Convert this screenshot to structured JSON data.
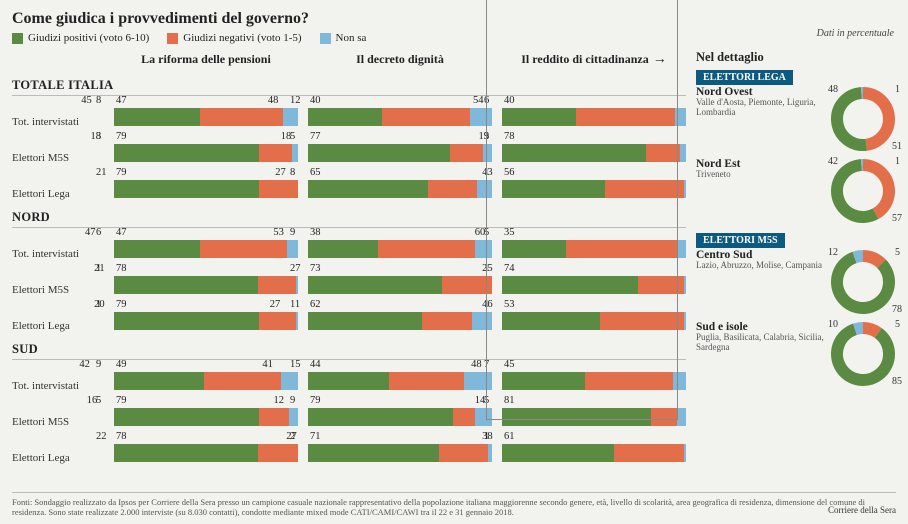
{
  "colors": {
    "positive": "#5b8a42",
    "negative": "#e36f4a",
    "dontknow": "#7fb8d9",
    "pill": "#0c5a80",
    "bg": "#f2f2ef"
  },
  "title": "Come giudica i provvedimenti del governo?",
  "dati_label": "Dati in percentuale",
  "legend": [
    {
      "label": "Giudizi positivi (voto 6-10)",
      "colorKey": "positive"
    },
    {
      "label": "Giudizi negativi (voto 1-5)",
      "colorKey": "negative"
    },
    {
      "label": "Non sa",
      "colorKey": "dontknow"
    }
  ],
  "columns": [
    "La riforma delle pensioni",
    "Il decreto dignità",
    "Il reddito di cittadinanza"
  ],
  "highlight_col_arrow": "→",
  "groups": [
    {
      "name": "TOTALE ITALIA",
      "rows": [
        {
          "label": "Tot. intervistati",
          "cells": [
            [
              47,
              45,
              8
            ],
            [
              40,
              48,
              12
            ],
            [
              40,
              54,
              6
            ]
          ]
        },
        {
          "label": "Elettori M5S",
          "cells": [
            [
              79,
              18,
              3
            ],
            [
              77,
              18,
              5
            ],
            [
              78,
              19,
              3
            ]
          ]
        },
        {
          "label": "Elettori Lega",
          "cells": [
            [
              79,
              21,
              0
            ],
            [
              65,
              27,
              8
            ],
            [
              56,
              43,
              1
            ]
          ]
        }
      ]
    },
    {
      "name": "NORD",
      "rows": [
        {
          "label": "Tot. intervistati",
          "cells": [
            [
              47,
              47,
              6
            ],
            [
              38,
              53,
              9
            ],
            [
              35,
              60,
              5
            ]
          ]
        },
        {
          "label": "Elettori M5S",
          "cells": [
            [
              78,
              21,
              1
            ],
            [
              73,
              27,
              0
            ],
            [
              74,
              25,
              1
            ]
          ]
        },
        {
          "label": "Elettori Lega",
          "cells": [
            [
              79,
              20,
              1
            ],
            [
              62,
              27,
              11
            ],
            [
              53,
              46,
              1
            ]
          ]
        }
      ]
    },
    {
      "name": "SUD",
      "rows": [
        {
          "label": "Tot. intervistati",
          "cells": [
            [
              49,
              42,
              9
            ],
            [
              44,
              41,
              15
            ],
            [
              45,
              48,
              7
            ]
          ]
        },
        {
          "label": "Elettori M5S",
          "cells": [
            [
              79,
              16,
              5
            ],
            [
              79,
              12,
              9
            ],
            [
              81,
              14,
              5
            ]
          ]
        },
        {
          "label": "Elettori Lega",
          "cells": [
            [
              78,
              22,
              0
            ],
            [
              71,
              27,
              2
            ],
            [
              61,
              38,
              1
            ]
          ]
        }
      ]
    }
  ],
  "right": {
    "header": "Nel dettaglio",
    "blocks": [
      {
        "pill": "ELETTORI LEGA",
        "items": [
          {
            "region": "Nord Ovest",
            "sub": "Valle d'Aosta, Piemonte, Liguria, Lombardia",
            "values": [
              48,
              51,
              1
            ]
          },
          {
            "region": "Nord Est",
            "sub": "Triveneto",
            "values": [
              42,
              57,
              1
            ]
          }
        ]
      },
      {
        "pill": "ELETTORI M5S",
        "items": [
          {
            "region": "Centro Sud",
            "sub": "Lazio, Abruzzo, Molise, Campania",
            "values": [
              12,
              78,
              5
            ]
          },
          {
            "region": "Sud e isole",
            "sub": "Puglia, Basilicata, Calabria, Sicilia, Sardegna",
            "values": [
              10,
              85,
              5
            ]
          }
        ]
      }
    ]
  },
  "footer_text": "Fonti: Sondaggio realizzato da Ipsos per Corriere della Sera presso un campione casuale nazionale rappresentativo della popolazione italiana maggiorenne secondo genere, età, livello di scolarità, area geografica di residenza, dimensione del comune di residenza. Sono state realizzate 2.000 interviste (su 8.030 contatti), condotte mediante mixed mode CATI/CAMI/CAWI tra il 22 e 31 gennaio 2018.",
  "footer_source": "Corriere della Sera"
}
